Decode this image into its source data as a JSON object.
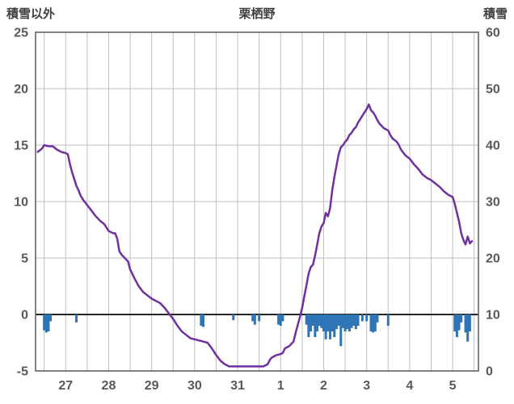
{
  "header": {
    "left_label": "積雪以外",
    "title": "栗栖野",
    "right_label": "積雪"
  },
  "chart_data": {
    "type": "line",
    "title": "栗栖野",
    "left_axis": {
      "label": "積雪以外",
      "range": [
        -5,
        25
      ],
      "ticks": [
        25,
        20,
        15,
        10,
        5,
        0,
        -5
      ]
    },
    "right_axis": {
      "label": "積雪",
      "range": [
        0,
        60
      ],
      "ticks": [
        60,
        50,
        40,
        30,
        20,
        10,
        0
      ]
    },
    "x_range": [
      26.3,
      36.6
    ],
    "x_gridline_step": 0.5,
    "x_ticks": [
      {
        "pos": 27,
        "label": "27"
      },
      {
        "pos": 28,
        "label": "28"
      },
      {
        "pos": 29,
        "label": "29"
      },
      {
        "pos": 30,
        "label": "30"
      },
      {
        "pos": 31,
        "label": "31"
      },
      {
        "pos": 32,
        "label": "1"
      },
      {
        "pos": 33,
        "label": "2"
      },
      {
        "pos": 34,
        "label": "3"
      },
      {
        "pos": 35,
        "label": "4"
      },
      {
        "pos": 36,
        "label": "5"
      }
    ],
    "grid_color": "#BFBFBF",
    "zero_line_color": "#262626",
    "border_color": "#595959",
    "tick_text_color": "#595959",
    "series": {
      "line": {
        "color": "#7030A0",
        "points": [
          [
            26.35,
            14.4
          ],
          [
            26.45,
            14.7
          ],
          [
            26.5,
            15.0
          ],
          [
            26.6,
            14.9
          ],
          [
            26.7,
            14.9
          ],
          [
            26.8,
            14.6
          ],
          [
            26.9,
            14.4
          ],
          [
            27.0,
            14.3
          ],
          [
            27.05,
            14.2
          ],
          [
            27.1,
            13.3
          ],
          [
            27.15,
            12.6
          ],
          [
            27.2,
            12.0
          ],
          [
            27.25,
            11.4
          ],
          [
            27.3,
            11.0
          ],
          [
            27.35,
            10.5
          ],
          [
            27.4,
            10.2
          ],
          [
            27.5,
            9.7
          ],
          [
            27.6,
            9.2
          ],
          [
            27.7,
            8.7
          ],
          [
            27.8,
            8.3
          ],
          [
            27.9,
            8.0
          ],
          [
            28.0,
            7.4
          ],
          [
            28.1,
            7.2
          ],
          [
            28.15,
            7.2
          ],
          [
            28.2,
            6.7
          ],
          [
            28.25,
            5.6
          ],
          [
            28.3,
            5.3
          ],
          [
            28.35,
            5.1
          ],
          [
            28.45,
            4.7
          ],
          [
            28.5,
            4.0
          ],
          [
            28.6,
            3.2
          ],
          [
            28.7,
            2.5
          ],
          [
            28.8,
            2.0
          ],
          [
            28.9,
            1.7
          ],
          [
            29.0,
            1.4
          ],
          [
            29.1,
            1.2
          ],
          [
            29.2,
            1.0
          ],
          [
            29.3,
            0.6
          ],
          [
            29.4,
            0.1
          ],
          [
            29.5,
            -0.4
          ],
          [
            29.6,
            -1.0
          ],
          [
            29.7,
            -1.5
          ],
          [
            29.8,
            -1.8
          ],
          [
            29.9,
            -2.1
          ],
          [
            30.0,
            -2.2
          ],
          [
            30.1,
            -2.3
          ],
          [
            30.2,
            -2.4
          ],
          [
            30.3,
            -2.5
          ],
          [
            30.4,
            -3.0
          ],
          [
            30.5,
            -3.6
          ],
          [
            30.6,
            -4.1
          ],
          [
            30.7,
            -4.4
          ],
          [
            30.8,
            -4.6
          ],
          [
            31.0,
            -4.6
          ],
          [
            31.3,
            -4.6
          ],
          [
            31.6,
            -4.6
          ],
          [
            31.7,
            -4.4
          ],
          [
            31.75,
            -4.0
          ],
          [
            31.8,
            -3.8
          ],
          [
            31.9,
            -3.6
          ],
          [
            32.0,
            -3.5
          ],
          [
            32.05,
            -3.4
          ],
          [
            32.1,
            -3.0
          ],
          [
            32.2,
            -2.8
          ],
          [
            32.3,
            -2.4
          ],
          [
            32.35,
            -1.6
          ],
          [
            32.4,
            -0.9
          ],
          [
            32.45,
            -0.2
          ],
          [
            32.5,
            0.6
          ],
          [
            32.55,
            1.6
          ],
          [
            32.6,
            2.6
          ],
          [
            32.65,
            3.6
          ],
          [
            32.7,
            4.2
          ],
          [
            32.75,
            4.4
          ],
          [
            32.8,
            5.2
          ],
          [
            32.85,
            6.2
          ],
          [
            32.9,
            7.2
          ],
          [
            32.95,
            7.8
          ],
          [
            33.0,
            8.1
          ],
          [
            33.05,
            9.0
          ],
          [
            33.1,
            8.7
          ],
          [
            33.15,
            9.4
          ],
          [
            33.2,
            11.0
          ],
          [
            33.25,
            12.2
          ],
          [
            33.3,
            13.2
          ],
          [
            33.35,
            14.2
          ],
          [
            33.4,
            14.8
          ],
          [
            33.45,
            15.0
          ],
          [
            33.5,
            15.3
          ],
          [
            33.55,
            15.5
          ],
          [
            33.6,
            15.9
          ],
          [
            33.65,
            16.1
          ],
          [
            33.7,
            16.4
          ],
          [
            33.75,
            16.6
          ],
          [
            33.8,
            17.0
          ],
          [
            33.85,
            17.3
          ],
          [
            33.9,
            17.6
          ],
          [
            33.95,
            17.9
          ],
          [
            34.0,
            18.2
          ],
          [
            34.05,
            18.6
          ],
          [
            34.1,
            18.1
          ],
          [
            34.15,
            17.9
          ],
          [
            34.2,
            17.6
          ],
          [
            34.25,
            17.2
          ],
          [
            34.3,
            16.9
          ],
          [
            34.4,
            16.5
          ],
          [
            34.5,
            16.3
          ],
          [
            34.55,
            15.9
          ],
          [
            34.6,
            15.6
          ],
          [
            34.7,
            15.3
          ],
          [
            34.75,
            15.0
          ],
          [
            34.8,
            14.6
          ],
          [
            34.9,
            14.1
          ],
          [
            35.0,
            13.8
          ],
          [
            35.1,
            13.3
          ],
          [
            35.2,
            12.9
          ],
          [
            35.3,
            12.4
          ],
          [
            35.4,
            12.1
          ],
          [
            35.5,
            11.9
          ],
          [
            35.6,
            11.6
          ],
          [
            35.7,
            11.3
          ],
          [
            35.8,
            10.9
          ],
          [
            35.9,
            10.6
          ],
          [
            36.0,
            10.4
          ],
          [
            36.05,
            9.8
          ],
          [
            36.1,
            9.0
          ],
          [
            36.15,
            8.2
          ],
          [
            36.2,
            7.2
          ],
          [
            36.25,
            6.6
          ],
          [
            36.3,
            6.2
          ],
          [
            36.35,
            6.9
          ],
          [
            36.4,
            6.3
          ],
          [
            36.45,
            6.5
          ]
        ]
      },
      "bars": {
        "color": "#2E75B6",
        "baseline": 0,
        "points": [
          [
            26.5,
            -1.4
          ],
          [
            26.55,
            -1.6
          ],
          [
            26.6,
            -1.5
          ],
          [
            26.65,
            -0.6
          ],
          [
            27.25,
            -0.7
          ],
          [
            30.15,
            -1.0
          ],
          [
            30.2,
            -1.1
          ],
          [
            30.9,
            -0.5
          ],
          [
            31.35,
            -0.6
          ],
          [
            31.4,
            -0.9
          ],
          [
            31.5,
            -0.6
          ],
          [
            31.95,
            -0.9
          ],
          [
            32.0,
            -1.0
          ],
          [
            32.05,
            -0.6
          ],
          [
            32.6,
            -0.9
          ],
          [
            32.65,
            -2.0
          ],
          [
            32.7,
            -1.5
          ],
          [
            32.75,
            -1.0
          ],
          [
            32.8,
            -2.0
          ],
          [
            32.85,
            -1.5
          ],
          [
            32.9,
            -1.0
          ],
          [
            32.95,
            -1.2
          ],
          [
            33.0,
            -1.5
          ],
          [
            33.05,
            -2.2
          ],
          [
            33.1,
            -1.5
          ],
          [
            33.15,
            -2.2
          ],
          [
            33.2,
            -1.5
          ],
          [
            33.25,
            -2.0
          ],
          [
            33.3,
            -1.3
          ],
          [
            33.35,
            -1.0
          ],
          [
            33.4,
            -2.8
          ],
          [
            33.45,
            -1.2
          ],
          [
            33.5,
            -1.5
          ],
          [
            33.55,
            -1.3
          ],
          [
            33.6,
            -1.5
          ],
          [
            33.65,
            -1.2
          ],
          [
            33.7,
            -1.0
          ],
          [
            33.75,
            -1.3
          ],
          [
            33.8,
            -1.0
          ],
          [
            33.9,
            -0.6
          ],
          [
            34.0,
            -0.6
          ],
          [
            34.1,
            -1.5
          ],
          [
            34.15,
            -1.6
          ],
          [
            34.2,
            -1.5
          ],
          [
            34.25,
            -0.7
          ],
          [
            34.5,
            -1.0
          ],
          [
            36.05,
            -1.5
          ],
          [
            36.1,
            -2.0
          ],
          [
            36.15,
            -1.4
          ],
          [
            36.2,
            -0.7
          ],
          [
            36.3,
            -1.6
          ],
          [
            36.35,
            -2.4
          ],
          [
            36.4,
            -1.5
          ]
        ]
      }
    }
  }
}
